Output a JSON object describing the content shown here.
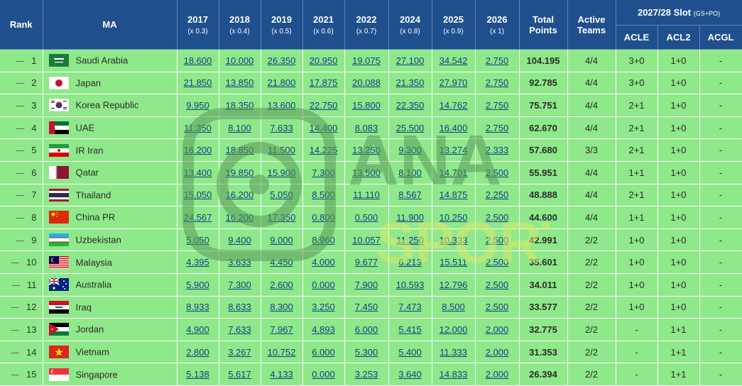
{
  "header": {
    "rank": "Rank",
    "ma": "MA",
    "years": [
      {
        "year": "2017",
        "mult": "(x 0.3)"
      },
      {
        "year": "2018",
        "mult": "(x 0.4)"
      },
      {
        "year": "2019",
        "mult": "(x 0.5)"
      },
      {
        "year": "2021",
        "mult": "(x 0.6)"
      },
      {
        "year": "2022",
        "mult": "(x 0.7)"
      },
      {
        "year": "2024",
        "mult": "(x 0.8)"
      },
      {
        "year": "2025",
        "mult": "(x 0.9)"
      },
      {
        "year": "2026",
        "mult": "(x 1)"
      }
    ],
    "total_line1": "Total",
    "total_line2": "Points",
    "active_line1": "Active",
    "active_line2": "Teams",
    "slot_title": "2027/28 Slot",
    "slot_sub": "(GS+PO)",
    "slots": [
      "ACLE",
      "ACL2",
      "ACGL"
    ]
  },
  "rows": [
    {
      "rank": "1",
      "flag": "flag-saudi-arabia",
      "name": "Saudi Arabia",
      "points": [
        "18.600",
        "10.000",
        "26.350",
        "20.950",
        "19.075",
        "27.100",
        "34.542",
        "2.750"
      ],
      "total": "104.195",
      "active": "4/4",
      "acle": "3+0",
      "acl2": "1+0",
      "acgl": "-"
    },
    {
      "rank": "2",
      "flag": "flag-japan",
      "name": "Japan",
      "points": [
        "21.850",
        "13.850",
        "21.800",
        "17.875",
        "20.088",
        "21.350",
        "27.970",
        "2.750"
      ],
      "total": "92.785",
      "active": "4/4",
      "acle": "3+0",
      "acl2": "1+0",
      "acgl": "-"
    },
    {
      "rank": "3",
      "flag": "flag-korea-republic",
      "name": "Korea Republic",
      "points": [
        "9.950",
        "18.350",
        "13.600",
        "22.750",
        "15.800",
        "22.350",
        "14.762",
        "2.750"
      ],
      "total": "75.751",
      "active": "4/4",
      "acle": "2+1",
      "acl2": "1+0",
      "acgl": "-"
    },
    {
      "rank": "4",
      "flag": "flag-uae",
      "name": "UAE",
      "points": [
        "11.350",
        "8.100",
        "7.633",
        "14.400",
        "8.083",
        "25.500",
        "16.400",
        "2.750"
      ],
      "total": "62.670",
      "active": "4/4",
      "acle": "2+1",
      "acl2": "1+0",
      "acgl": "-"
    },
    {
      "rank": "5",
      "flag": "flag-ir-iran",
      "name": "IR Iran",
      "points": [
        "16.200",
        "18.850",
        "11.500",
        "14.225",
        "13.250",
        "9.300",
        "13.274",
        "2.333"
      ],
      "total": "57.680",
      "active": "3/3",
      "acle": "2+1",
      "acl2": "1+0",
      "acgl": "-"
    },
    {
      "rank": "6",
      "flag": "flag-qatar",
      "name": "Qatar",
      "points": [
        "13.400",
        "19.850",
        "15.900",
        "7.300",
        "13.500",
        "8.100",
        "14.701",
        "2.500"
      ],
      "total": "55.951",
      "active": "4/4",
      "acle": "1+1",
      "acl2": "1+0",
      "acgl": "-"
    },
    {
      "rank": "7",
      "flag": "flag-thailand",
      "name": "Thailand",
      "points": [
        "15.050",
        "16.200",
        "5.050",
        "8.500",
        "11.110",
        "8.567",
        "14.875",
        "2.250"
      ],
      "total": "48.888",
      "active": "4/4",
      "acle": "2+1",
      "acl2": "1+0",
      "acgl": "-"
    },
    {
      "rank": "8",
      "flag": "flag-china-pr",
      "name": "China PR",
      "points": [
        "24.567",
        "16.200",
        "17.350",
        "0.800",
        "0.500",
        "11.900",
        "10.250",
        "2.500"
      ],
      "total": "44.600",
      "active": "4/4",
      "acle": "1+1",
      "acl2": "1+0",
      "acgl": "-"
    },
    {
      "rank": "9",
      "flag": "flag-uzbekistan",
      "name": "Uzbekistan",
      "points": [
        "5.050",
        "9.400",
        "9.000",
        "8.960",
        "10.057",
        "11.250",
        "10.333",
        "2.500"
      ],
      "total": "42.991",
      "active": "2/2",
      "acle": "1+0",
      "acl2": "1+0",
      "acgl": "-"
    },
    {
      "rank": "10",
      "flag": "flag-malaysia",
      "name": "Malaysia",
      "points": [
        "4.395",
        "3.633",
        "4.450",
        "4.000",
        "9.677",
        "6.213",
        "15.511",
        "2.500"
      ],
      "total": "35.601",
      "active": "2/2",
      "acle": "1+0",
      "acl2": "1+0",
      "acgl": "-"
    },
    {
      "rank": "11",
      "flag": "flag-australia",
      "name": "Australia",
      "points": [
        "5.900",
        "7.300",
        "2.600",
        "0.000",
        "7.900",
        "10.593",
        "12.796",
        "2.500"
      ],
      "total": "34.011",
      "active": "2/2",
      "acle": "1+0",
      "acl2": "1+0",
      "acgl": "-"
    },
    {
      "rank": "12",
      "flag": "flag-iraq",
      "name": "Iraq",
      "points": [
        "8.933",
        "8.633",
        "8.300",
        "3.250",
        "7.450",
        "7.473",
        "8.500",
        "2.500"
      ],
      "total": "33.577",
      "active": "2/2",
      "acle": "1+0",
      "acl2": "1+0",
      "acgl": "-"
    },
    {
      "rank": "13",
      "flag": "flag-jordan",
      "name": "Jordan",
      "points": [
        "4.900",
        "7.633",
        "7.967",
        "4.893",
        "6.000",
        "5.415",
        "12.000",
        "2.000"
      ],
      "total": "32.775",
      "active": "2/2",
      "acle": "-",
      "acl2": "1+1",
      "acgl": "-"
    },
    {
      "rank": "14",
      "flag": "flag-vietnam",
      "name": "Vietnam",
      "points": [
        "2.800",
        "3.267",
        "10.752",
        "6.000",
        "5.300",
        "5.400",
        "11.333",
        "2.000"
      ],
      "total": "31.353",
      "active": "2/2",
      "acle": "-",
      "acl2": "1+1",
      "acgl": "-"
    },
    {
      "rank": "15",
      "flag": "flag-singapore",
      "name": "Singapore",
      "points": [
        "5.138",
        "5.617",
        "4.133",
        "0.000",
        "3.253",
        "3.640",
        "14.833",
        "2.000"
      ],
      "total": "26.394",
      "active": "2/2",
      "acle": "-",
      "acl2": "1+1",
      "acgl": "-"
    }
  ],
  "watermark": {
    "line1": "ANA",
    "line2": "SPORT"
  },
  "colors": {
    "header_bg": "#1f4f8d",
    "row_bg": "#8fe88a",
    "link": "#123f86"
  }
}
